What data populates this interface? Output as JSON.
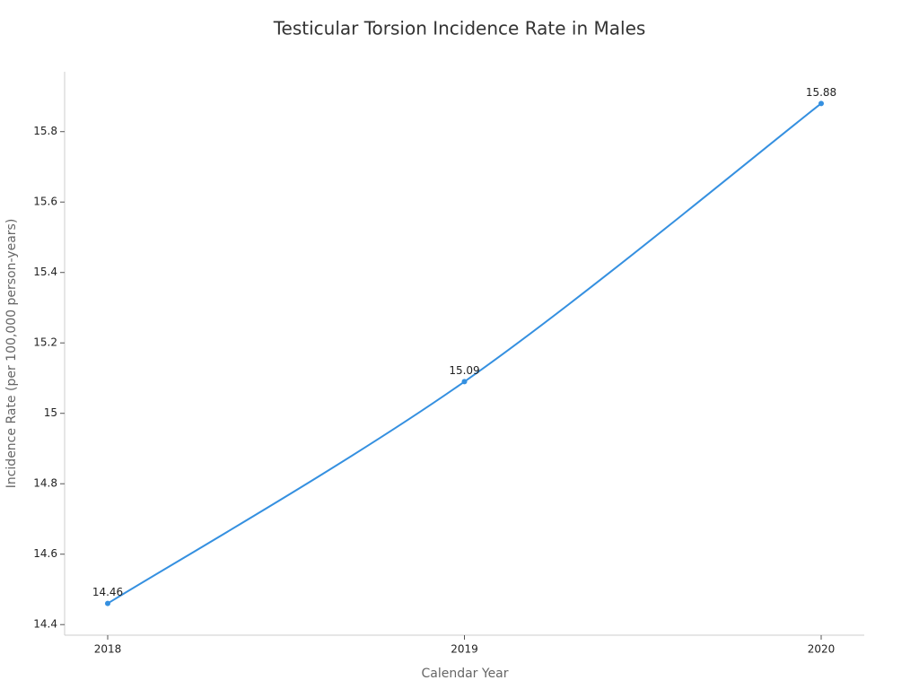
{
  "chart_data": {
    "type": "line",
    "title": "Testicular Torsion Incidence Rate in Males",
    "x_label": "Calendar Year",
    "y_label": "Incidence Rate (per 100,000 person-years)",
    "categories": [
      "2018",
      "2019",
      "2020"
    ],
    "series": [
      {
        "name": "Incidence Rate",
        "color": "#3590e0",
        "values": [
          14.46,
          15.09,
          15.88
        ]
      }
    ],
    "ylim": [
      14.37,
      15.97
    ],
    "yticks": [
      14.4,
      14.6,
      14.8,
      15,
      15.2,
      15.4,
      15.6,
      15.8
    ],
    "grid": false
  }
}
